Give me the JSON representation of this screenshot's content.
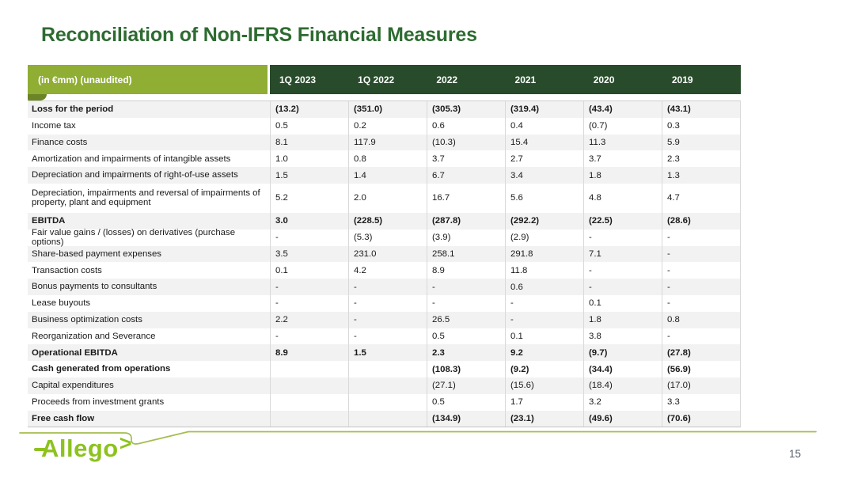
{
  "title": "Reconciliation of Non-IFRS Financial Measures",
  "page_number": "15",
  "logo": {
    "text": "Allego",
    "arrow": ">"
  },
  "colors": {
    "title_green": "#2e6b31",
    "header_olive": "#8fae33",
    "header_dark_green": "#284b2b",
    "fold_olive": "#6c8426",
    "row_stripe": "#f2f2f2",
    "logo_green": "#8dc21f",
    "swoosh_green": "#a4bd4f",
    "page_number_gray": "#5a6270"
  },
  "table": {
    "unit_label": "(in €mm) (unaudited)",
    "columns": [
      "1Q 2023",
      "1Q 2022",
      "2022",
      "2021",
      "2020",
      "2019"
    ],
    "rows": [
      {
        "label": "Loss for the period",
        "bold": true,
        "tall": false,
        "values": [
          "(13.2)",
          "(351.0)",
          "(305.3)",
          "(319.4)",
          "(43.4)",
          "(43.1)"
        ]
      },
      {
        "label": "Income tax",
        "bold": false,
        "tall": false,
        "values": [
          "0.5",
          "0.2",
          "0.6",
          "0.4",
          "(0.7)",
          "0.3"
        ]
      },
      {
        "label": "Finance costs",
        "bold": false,
        "tall": false,
        "values": [
          "8.1",
          "117.9",
          "(10.3)",
          "15.4",
          "11.3",
          "5.9"
        ]
      },
      {
        "label": "Amortization and impairments of intangible assets",
        "bold": false,
        "tall": false,
        "values": [
          "1.0",
          "0.8",
          "3.7",
          "2.7",
          "3.7",
          "2.3"
        ]
      },
      {
        "label": "Depreciation and impairments of right-of-use assets",
        "bold": false,
        "tall": false,
        "values": [
          "1.5",
          "1.4",
          "6.7",
          "3.4",
          "1.8",
          "1.3"
        ]
      },
      {
        "label": "Depreciation, impairments and reversal of impairments of property, plant and equipment",
        "bold": false,
        "tall": true,
        "values": [
          "5.2",
          "2.0",
          "16.7",
          "5.6",
          "4.8",
          "4.7"
        ]
      },
      {
        "label": "EBITDA",
        "bold": true,
        "tall": false,
        "values": [
          "3.0",
          "(228.5)",
          "(287.8)",
          "(292.2)",
          "(22.5)",
          "(28.6)"
        ]
      },
      {
        "label": "Fair value gains / (losses) on derivatives (purchase options)",
        "bold": false,
        "tall": false,
        "values": [
          "-",
          "(5.3)",
          "(3.9)",
          "(2.9)",
          "-",
          "-"
        ]
      },
      {
        "label": "Share-based payment expenses",
        "bold": false,
        "tall": false,
        "values": [
          "3.5",
          "231.0",
          "258.1",
          "291.8",
          "7.1",
          "-"
        ]
      },
      {
        "label": "Transaction costs",
        "bold": false,
        "tall": false,
        "values": [
          "0.1",
          "4.2",
          "8.9",
          "11.8",
          "-",
          "-"
        ]
      },
      {
        "label": "Bonus payments to consultants",
        "bold": false,
        "tall": false,
        "values": [
          "-",
          "-",
          "-",
          "0.6",
          "-",
          "-"
        ]
      },
      {
        "label": "Lease buyouts",
        "bold": false,
        "tall": false,
        "values": [
          "-",
          "-",
          "-",
          "-",
          "0.1",
          "-"
        ]
      },
      {
        "label": "Business optimization costs",
        "bold": false,
        "tall": false,
        "values": [
          "2.2",
          "-",
          "26.5",
          "-",
          "1.8",
          "0.8"
        ]
      },
      {
        "label": "Reorganization and Severance",
        "bold": false,
        "tall": false,
        "values": [
          "-",
          "-",
          "0.5",
          "0.1",
          "3.8",
          "-"
        ]
      },
      {
        "label": "Operational EBITDA",
        "bold": true,
        "tall": false,
        "values": [
          "8.9",
          "1.5",
          "2.3",
          "9.2",
          "(9.7)",
          "(27.8)"
        ]
      },
      {
        "label": "Cash generated from operations",
        "bold": true,
        "tall": false,
        "values": [
          "",
          "",
          "(108.3)",
          "(9.2)",
          "(34.4)",
          "(56.9)"
        ]
      },
      {
        "label": "Capital expenditures",
        "bold": false,
        "tall": false,
        "values": [
          "",
          "",
          "(27.1)",
          "(15.6)",
          "(18.4)",
          "(17.0)"
        ]
      },
      {
        "label": "Proceeds from investment grants",
        "bold": false,
        "tall": false,
        "values": [
          "",
          "",
          "0.5",
          "1.7",
          "3.2",
          "3.3"
        ]
      },
      {
        "label": "Free cash flow",
        "bold": true,
        "tall": false,
        "values": [
          "",
          "",
          "(134.9)",
          "(23.1)",
          "(49.6)",
          "(70.6)"
        ]
      }
    ]
  }
}
